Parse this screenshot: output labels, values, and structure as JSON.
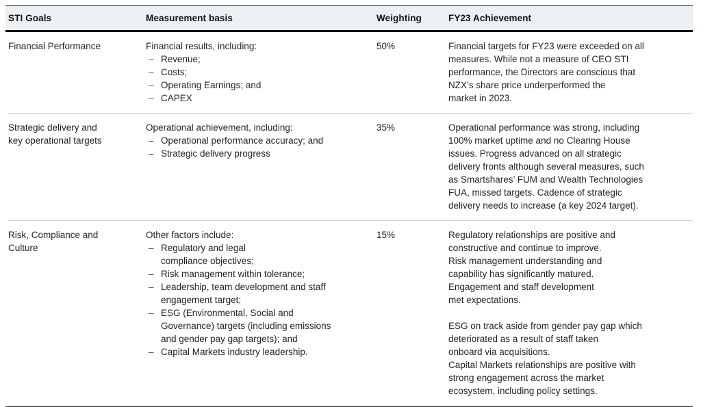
{
  "list_marker": "–",
  "colors": {
    "header_background": "#edf0f2",
    "header_rule": "#0d0d0d",
    "row_separator": "#c9ccce",
    "bottom_rule": "#3e3e3e",
    "text": "#1f2124"
  },
  "table": {
    "columns": [
      {
        "label": "STI Goals"
      },
      {
        "label": "Measurement basis"
      },
      {
        "label": "Weighting"
      },
      {
        "label": "FY23 Achievement"
      }
    ],
    "rows": [
      {
        "goal": "Financial Performance",
        "measurement_intro": "Financial results, including:",
        "measurement_items": [
          "Revenue;",
          "Costs;",
          "Operating Earnings; and",
          "CAPEX"
        ],
        "weighting": "50%",
        "achievement": "Financial targets for FY23 were exceeded on all\nmeasures. While not a measure of CEO STI\nperformance, the Directors are conscious that\nNZX’s share price underperformed the\nmarket in 2023."
      },
      {
        "goal": "Strategic delivery and\nkey operational targets",
        "measurement_intro": "Operational achievement, including:",
        "measurement_items": [
          "Operational performance accuracy; and",
          "Strategic delivery progress"
        ],
        "weighting": "35%",
        "achievement": "Operational performance was strong, including\n100% market uptime and no Clearing House\nissues. Progress advanced on all strategic\ndelivery fronts although several measures, such\nas Smartshares’ FUM and Wealth Technologies\nFUA, missed targets. Cadence of strategic\ndelivery needs to increase (a key 2024 target)."
      },
      {
        "goal": "Risk, Compliance and\nCulture",
        "measurement_intro": "Other factors include:",
        "measurement_items": [
          "Regulatory and legal\ncompliance objectives;",
          "Risk management within tolerance;",
          "Leadership, team development and staff\nengagement target;",
          "ESG (Environmental, Social and\nGovernance) targets (including emissions\nand gender pay gap targets); and",
          "Capital Markets industry leadership."
        ],
        "weighting": "15%",
        "achievement": "Regulatory relationships are positive and\nconstructive and continue to improve.\nRisk management understanding and\ncapability has significantly matured.\nEngagement and staff development\nmet expectations.\n\nESG on track aside from gender pay gap which\ndeteriorated as a result of staff taken\nonboard via acquisitions.\nCapital Markets relationships are positive with\nstrong engagement across the market\necosystem, including policy settings."
      }
    ]
  }
}
